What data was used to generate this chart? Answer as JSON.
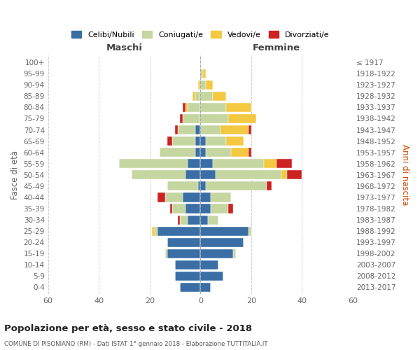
{
  "age_groups": [
    "0-4",
    "5-9",
    "10-14",
    "15-19",
    "20-24",
    "25-29",
    "30-34",
    "35-39",
    "40-44",
    "45-49",
    "50-54",
    "55-59",
    "60-64",
    "65-69",
    "70-74",
    "75-79",
    "80-84",
    "85-89",
    "90-94",
    "95-99",
    "100+"
  ],
  "birth_years": [
    "2013-2017",
    "2008-2012",
    "2003-2007",
    "1998-2002",
    "1993-1997",
    "1988-1992",
    "1983-1987",
    "1978-1982",
    "1973-1977",
    "1968-1972",
    "1963-1967",
    "1958-1962",
    "1953-1957",
    "1948-1952",
    "1943-1947",
    "1938-1942",
    "1933-1937",
    "1928-1932",
    "1923-1927",
    "1918-1922",
    "≤ 1917"
  ],
  "colors": {
    "celibi": "#3a6ea5",
    "coniugati": "#c5d6a0",
    "vedovi": "#f5c842",
    "divorziati": "#cc2222"
  },
  "maschi": {
    "celibi": [
      8,
      10,
      10,
      13,
      13,
      17,
      5,
      6,
      7,
      1,
      6,
      5,
      2,
      2,
      2,
      0,
      0,
      0,
      0,
      0,
      0
    ],
    "coniugati": [
      0,
      0,
      0,
      1,
      0,
      1,
      3,
      5,
      7,
      12,
      21,
      27,
      14,
      9,
      7,
      7,
      5,
      2,
      0,
      0,
      0
    ],
    "vedovi": [
      0,
      0,
      0,
      0,
      0,
      1,
      0,
      0,
      0,
      0,
      0,
      0,
      0,
      0,
      0,
      0,
      1,
      1,
      1,
      0,
      0
    ],
    "divorziati": [
      0,
      0,
      0,
      0,
      0,
      0,
      1,
      1,
      3,
      0,
      0,
      0,
      0,
      2,
      1,
      1,
      1,
      0,
      0,
      0,
      0
    ]
  },
  "femmine": {
    "celibi": [
      4,
      9,
      7,
      13,
      17,
      19,
      3,
      4,
      4,
      2,
      6,
      5,
      2,
      2,
      0,
      0,
      0,
      0,
      0,
      0,
      0
    ],
    "coniugati": [
      0,
      0,
      0,
      1,
      0,
      1,
      4,
      7,
      8,
      24,
      26,
      20,
      10,
      8,
      8,
      11,
      10,
      5,
      2,
      1,
      0
    ],
    "vedovi": [
      0,
      0,
      0,
      0,
      0,
      0,
      0,
      0,
      0,
      0,
      2,
      5,
      7,
      7,
      11,
      11,
      10,
      5,
      3,
      1,
      0
    ],
    "divorziati": [
      0,
      0,
      0,
      0,
      0,
      0,
      0,
      2,
      0,
      2,
      6,
      6,
      1,
      0,
      1,
      0,
      0,
      0,
      0,
      0,
      0
    ]
  },
  "title": "Popolazione per età, sesso e stato civile - 2018",
  "subtitle": "COMUNE DI PISONIANO (RM) - Dati ISTAT 1° gennaio 2018 - Elaborazione TUTTITALIA.IT",
  "xlabel_left": "Maschi",
  "xlabel_right": "Femmine",
  "ylabel_left": "Fasce di età",
  "ylabel_right": "Anni di nascita",
  "xlim": 60,
  "legend_labels": [
    "Celibi/Nubili",
    "Coniugati/e",
    "Vedovi/e",
    "Divorziati/e"
  ],
  "background_color": "#ffffff"
}
